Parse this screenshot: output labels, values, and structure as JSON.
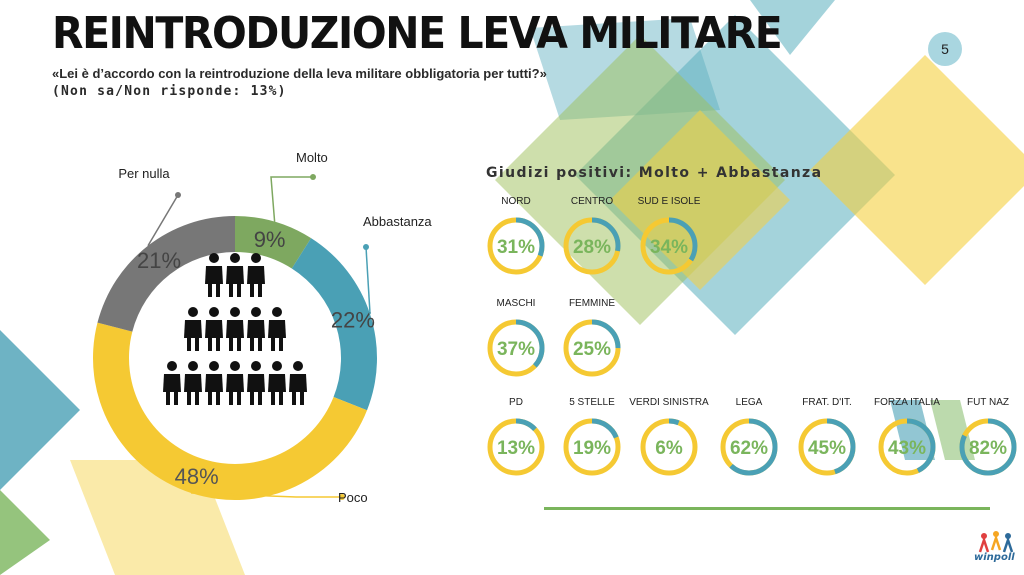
{
  "title": "REINTRODUZIONE LEVA MILITARE",
  "question": "«Lei è d’accordo con la reintroduzione della leva militare obbligatoria per tutti?»",
  "non_response": "(Non sa/Non risponde: 13%)",
  "page_number": "5",
  "colors": {
    "molto": "#7ea860",
    "abbastanza": "#4aa0b5",
    "poco": "#f5c933",
    "per_nulla": "#777777",
    "ring_positive": "#4aa0b5",
    "ring_rest": "#f5c933",
    "value_text": "#7ab55c"
  },
  "chart_data": [
    {
      "type": "pie",
      "style": "donut",
      "categories": [
        "Molto",
        "Abbastanza",
        "Poco",
        "Per nulla"
      ],
      "values": [
        9,
        22,
        48,
        21
      ],
      "value_labels": [
        "9%",
        "22%",
        "48%",
        "21%"
      ],
      "center_icon": "people-pyramid-icon"
    },
    {
      "type": "pie",
      "style": "ring-gauges",
      "title": "Giudizi positivi: Molto + Abbastanza",
      "groups": [
        {
          "categories": [
            "NORD",
            "CENTRO",
            "SUD E ISOLE"
          ],
          "values": [
            31,
            28,
            34
          ],
          "value_labels": [
            "31%",
            "28%",
            "34%"
          ]
        },
        {
          "categories": [
            "MASCHI",
            "FEMMINE"
          ],
          "values": [
            37,
            25
          ],
          "value_labels": [
            "37%",
            "25%"
          ]
        },
        {
          "categories": [
            "PD",
            "5 STELLE",
            "VERDI SINISTRA",
            "LEGA",
            "FRAT. D'IT.",
            "FORZA ITALIA",
            "FUT NAZ"
          ],
          "values": [
            13,
            19,
            6,
            62,
            45,
            43,
            82
          ],
          "value_labels": [
            "13%",
            "19%",
            "6%",
            "62%",
            "45%",
            "43%",
            "82%"
          ]
        }
      ]
    }
  ],
  "logo": {
    "text": "winpoll",
    "icon": "people-logo-icon"
  }
}
